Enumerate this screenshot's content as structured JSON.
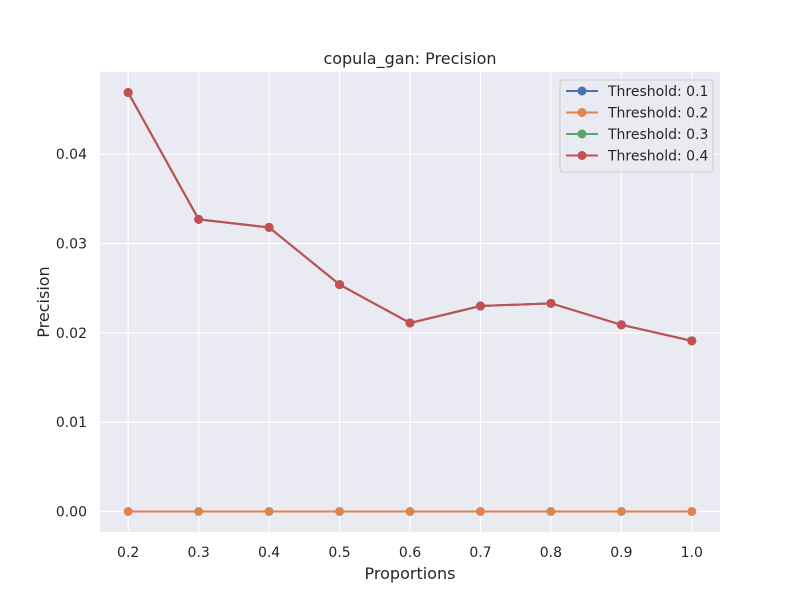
{
  "chart_data": {
    "type": "line",
    "title": "copula_gan: Precision",
    "xlabel": "Proportions",
    "ylabel": "Precision",
    "x": [
      0.2,
      0.3,
      0.4,
      0.5,
      0.6,
      0.7,
      0.8,
      0.9,
      1.0
    ],
    "x_tick_labels": [
      "0.2",
      "0.3",
      "0.4",
      "0.5",
      "0.6",
      "0.7",
      "0.8",
      "0.9",
      "1.0"
    ],
    "y_ticks": [
      0.0,
      0.01,
      0.02,
      0.03,
      0.04
    ],
    "y_tick_labels": [
      "0.00",
      "0.01",
      "0.02",
      "0.03",
      "0.04"
    ],
    "xlim": [
      0.16,
      1.04
    ],
    "ylim": [
      -0.0023,
      0.0492
    ],
    "grid": true,
    "legend_position": "top-right",
    "series": [
      {
        "name": "Threshold: 0.1",
        "color": "#4c72b0",
        "values": [
          0.0469,
          0.0327,
          0.0318,
          0.0254,
          0.0211,
          0.023,
          0.0233,
          0.0209,
          0.0191
        ]
      },
      {
        "name": "Threshold: 0.2",
        "color": "#dd8452",
        "values": [
          0,
          0,
          0,
          0,
          0,
          0,
          0,
          0,
          0
        ]
      },
      {
        "name": "Threshold: 0.3",
        "color": "#55a868",
        "values": [
          0.0469,
          0.0327,
          0.0318,
          0.0254,
          0.0211,
          0.023,
          0.0233,
          0.0209,
          0.0191
        ]
      },
      {
        "name": "Threshold: 0.4",
        "color": "#c44e52",
        "values": [
          0.0469,
          0.0327,
          0.0318,
          0.0254,
          0.0211,
          0.023,
          0.0233,
          0.0209,
          0.0191
        ]
      }
    ]
  }
}
